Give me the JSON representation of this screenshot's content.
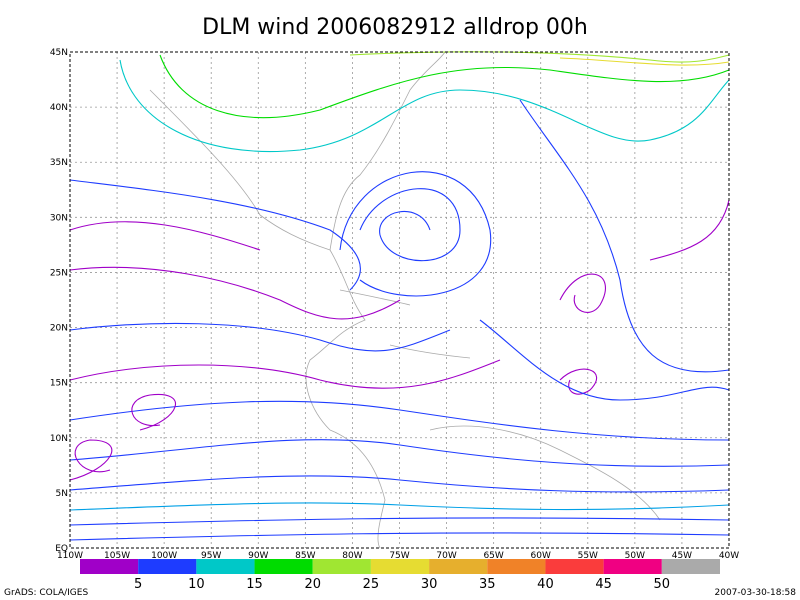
{
  "map": {
    "title": "DLM wind 2006082912 alldrop 00h",
    "lat_labels": [
      "EQ",
      "5N",
      "10N",
      "15N",
      "20N",
      "25N",
      "30N",
      "35N",
      "40N",
      "45N"
    ],
    "lon_labels": [
      "110W",
      "105W",
      "100W",
      "95W",
      "90W",
      "85W",
      "80W",
      "75W",
      "70W",
      "65W",
      "60W",
      "55W",
      "50W",
      "45W",
      "40W"
    ],
    "colorbar": {
      "levels": [
        5,
        10,
        15,
        20,
        25,
        30,
        35,
        40,
        45,
        50
      ],
      "colors": [
        "#a000c8",
        "#1e3cff",
        "#00c8c8",
        "#00dc00",
        "#a0e632",
        "#e6dc32",
        "#e6af2d",
        "#f08228",
        "#fa3c3c",
        "#f00082",
        "#aaaaaa"
      ]
    },
    "footer_left": "GrADS: COLA/IGES",
    "footer_right": "2007-03-30-18:58"
  }
}
